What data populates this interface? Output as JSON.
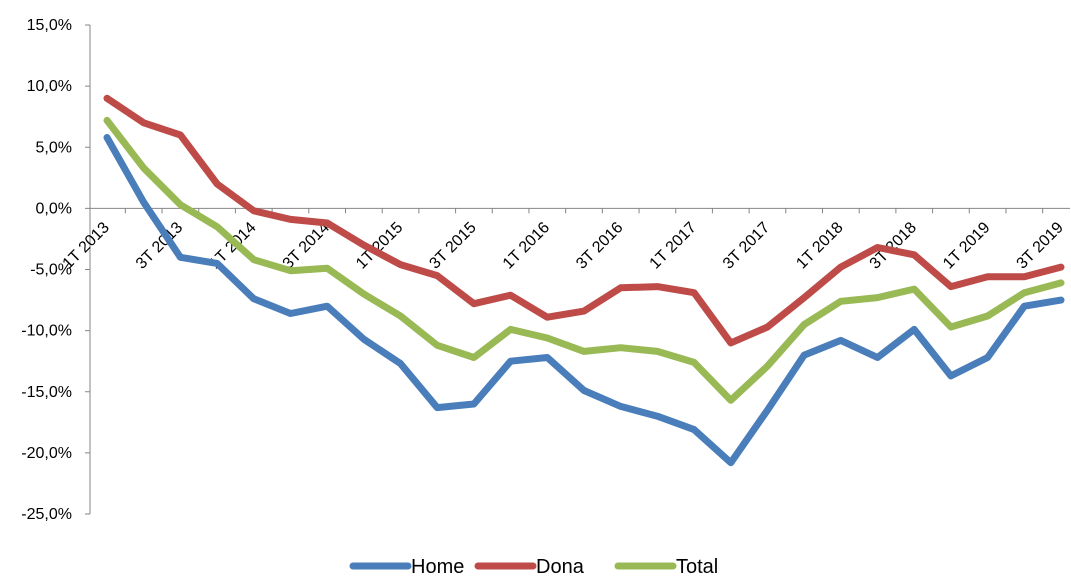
{
  "chart_data": {
    "type": "line",
    "title": "",
    "xlabel": "",
    "ylabel": "",
    "ylim": [
      -25,
      15
    ],
    "yticks": [
      "15,0%",
      "10,0%",
      "5,0%",
      "0,0%",
      "-5,0%",
      "-10,0%",
      "-15,0%",
      "-20,0%",
      "-25,0%"
    ],
    "ytick_values": [
      15,
      10,
      5,
      0,
      -5,
      -10,
      -15,
      -20,
      -25
    ],
    "x": [
      "1T 2013",
      "2T 2013",
      "3T 2013",
      "4T 2013",
      "1T 2014",
      "2T 2014",
      "3T 2014",
      "4T 2014",
      "1T 2015",
      "2T 2015",
      "3T 2015",
      "4T 2015",
      "1T 2016",
      "2T 2016",
      "3T 2016",
      "4T 2016",
      "1T 2017",
      "2T 2017",
      "3T 2017",
      "4T 2017",
      "1T 2018",
      "2T 2018",
      "3T 2018",
      "4T 2018",
      "1T 2019",
      "2T 2019",
      "3T 2019"
    ],
    "x_tick_labels": [
      "1T 2013",
      "3T 2013",
      "1T 2014",
      "3T 2014",
      "1T 2015",
      "3T 2015",
      "1T 2016",
      "3T 2016",
      "1T 2017",
      "3T 2017",
      "1T 2018",
      "3T 2018",
      "1T 2019",
      "3T 2019"
    ],
    "legend_position": "bottom",
    "grid": false,
    "series": [
      {
        "name": "Home",
        "color": "#4A7EBB",
        "values": [
          5.8,
          0.5,
          -4.0,
          -4.5,
          -7.4,
          -8.6,
          -8.0,
          -10.7,
          -12.7,
          -16.3,
          -16.0,
          -12.5,
          -12.2,
          -14.9,
          -16.2,
          -17.0,
          -18.1,
          -20.8,
          -16.5,
          -12.0,
          -10.8,
          -12.2,
          -9.9,
          -13.7,
          -12.2,
          -8.0,
          -7.5
        ]
      },
      {
        "name": "Dona",
        "color": "#BE4B48",
        "values": [
          9.0,
          7.0,
          6.0,
          2.0,
          -0.2,
          -0.9,
          -1.2,
          -3.0,
          -4.6,
          -5.5,
          -7.8,
          -7.1,
          -8.9,
          -8.4,
          -6.5,
          -6.4,
          -6.9,
          -11.0,
          -9.7,
          -7.3,
          -4.8,
          -3.2,
          -3.8,
          -6.4,
          -5.6,
          -5.6,
          -4.8
        ]
      },
      {
        "name": "Total",
        "color": "#98B954",
        "values": [
          7.2,
          3.3,
          0.3,
          -1.5,
          -4.2,
          -5.1,
          -4.9,
          -7.0,
          -8.8,
          -11.2,
          -12.2,
          -9.9,
          -10.6,
          -11.7,
          -11.4,
          -11.7,
          -12.6,
          -15.7,
          -12.9,
          -9.5,
          -7.6,
          -7.3,
          -6.6,
          -9.7,
          -8.8,
          -6.9,
          -6.1
        ]
      }
    ]
  }
}
